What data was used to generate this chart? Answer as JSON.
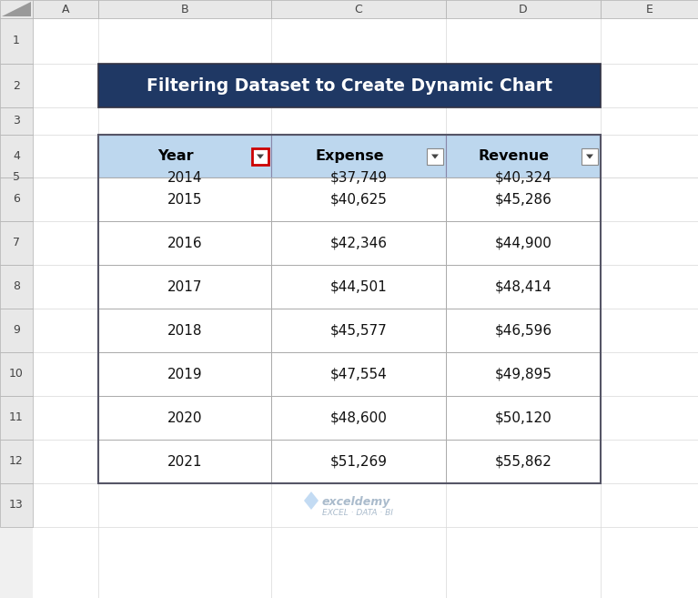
{
  "title": "Filtering Dataset to Create Dynamic Chart",
  "title_bg": "#1F3864",
  "title_fg": "#FFFFFF",
  "header_bg": "#BDD7EE",
  "header_fg": "#000000",
  "row_bg": "#FFFFFF",
  "outer_bg": "#F0F0F0",
  "grid_color": "#C0C0C0",
  "label_bg": "#E8E8E8",
  "label_border": "#B0B0B0",
  "columns": [
    "Year",
    "Expense",
    "Revenue"
  ],
  "rows": [
    [
      "2014",
      "$37,749",
      "$40,324"
    ],
    [
      "2015",
      "$40,625",
      "$45,286"
    ],
    [
      "2016",
      "$42,346",
      "$44,900"
    ],
    [
      "2017",
      "$44,501",
      "$48,414"
    ],
    [
      "2018",
      "$45,577",
      "$46,596"
    ],
    [
      "2019",
      "$47,554",
      "$49,895"
    ],
    [
      "2020",
      "$48,600",
      "$50,120"
    ],
    [
      "2021",
      "$51,269",
      "$55,862"
    ]
  ],
  "col_labels": [
    "A",
    "B",
    "C",
    "D",
    "E"
  ],
  "row_labels": [
    "1",
    "2",
    "3",
    "4",
    "5",
    "6",
    "7",
    "8",
    "9",
    "10",
    "11",
    "12",
    "13"
  ],
  "filter_highlight_color": "#CC0000",
  "watermark_text": "exceldemy",
  "watermark_sub": "EXCEL · DATA · BI",
  "filter_arrow_col_indices": [
    0,
    1,
    2
  ]
}
